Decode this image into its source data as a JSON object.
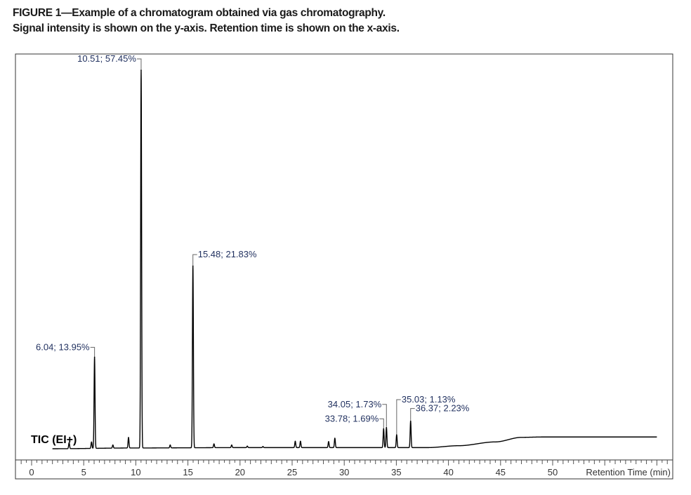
{
  "figure": {
    "title": "FIGURE 1—Example of a chromatogram obtained via gas chromatography.",
    "subtitle": "Signal intensity is shown on the y-axis. Retention time is shown on the x-axis."
  },
  "chart_data": {
    "type": "line",
    "trace_label": "TIC (EI+)",
    "xlabel": "Retention Time (min)",
    "ylabel": "",
    "xlim": [
      0,
      61
    ],
    "ylim": [
      0,
      100
    ],
    "x_ticks": [
      0,
      5,
      10,
      15,
      20,
      25,
      30,
      35,
      40,
      45,
      50
    ],
    "x_tick_labels": [
      "0",
      "5",
      "10",
      "15",
      "20",
      "25",
      "30",
      "35",
      "40",
      "45",
      "50"
    ],
    "grid": false,
    "peaks": [
      {
        "label": "6.04; 13.95%",
        "x": 6.04,
        "y": 24.2
      },
      {
        "label": "10.51; 57.45%",
        "x": 10.51,
        "y": 100
      },
      {
        "label": "15.48; 21.83%",
        "x": 15.48,
        "y": 48.3
      },
      {
        "label": "33.78; 1.69%",
        "x": 33.78,
        "y": 5.3
      },
      {
        "label": "34.05; 1.73%",
        "x": 34.05,
        "y": 5.6
      },
      {
        "label": "35.03; 1.13%",
        "x": 35.03,
        "y": 3.7
      },
      {
        "label": "36.37; 2.23%",
        "x": 36.37,
        "y": 7.3
      }
    ],
    "minor_peaks": [
      {
        "x": 3.6,
        "y": 1.6
      },
      {
        "x": 5.75,
        "y": 1.8
      },
      {
        "x": 7.8,
        "y": 1.0
      },
      {
        "x": 9.3,
        "y": 3.0
      },
      {
        "x": 13.3,
        "y": 1.0
      },
      {
        "x": 17.5,
        "y": 1.3
      },
      {
        "x": 19.2,
        "y": 1.0
      },
      {
        "x": 20.7,
        "y": 0.7
      },
      {
        "x": 22.2,
        "y": 0.6
      },
      {
        "x": 25.3,
        "y": 2.0
      },
      {
        "x": 25.8,
        "y": 2.0
      },
      {
        "x": 28.5,
        "y": 1.9
      },
      {
        "x": 29.1,
        "y": 2.8
      }
    ],
    "baseline": [
      {
        "x": 2.0,
        "y": 0.0
      },
      {
        "x": 10.0,
        "y": 0.2
      },
      {
        "x": 20.0,
        "y": 0.3
      },
      {
        "x": 30.0,
        "y": 0.3
      },
      {
        "x": 38.0,
        "y": 0.3
      },
      {
        "x": 41.0,
        "y": 0.8
      },
      {
        "x": 44.5,
        "y": 1.8
      },
      {
        "x": 47.0,
        "y": 3.0
      },
      {
        "x": 49.0,
        "y": 3.1
      },
      {
        "x": 60.0,
        "y": 3.1
      }
    ]
  }
}
